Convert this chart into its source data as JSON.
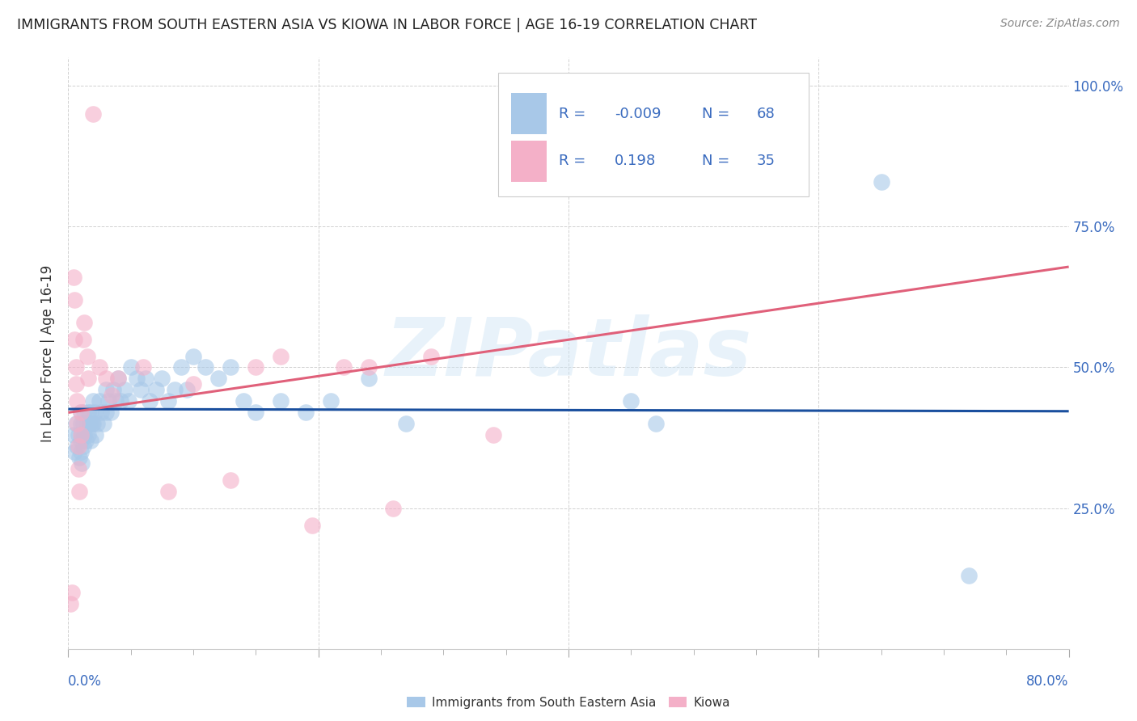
{
  "title": "IMMIGRANTS FROM SOUTH EASTERN ASIA VS KIOWA IN LABOR FORCE | AGE 16-19 CORRELATION CHART",
  "source": "Source: ZipAtlas.com",
  "ylabel": "In Labor Force | Age 16-19",
  "x_min": 0.0,
  "x_max": 0.8,
  "y_min": 0.0,
  "y_max": 1.05,
  "blue_R": "-0.009",
  "blue_N": "68",
  "pink_R": "0.198",
  "pink_N": "35",
  "blue_color": "#a8c8e8",
  "pink_color": "#f4b0c8",
  "blue_line_color": "#1a4f9e",
  "pink_line_color": "#e0607a",
  "text_color_blue": "#3a6bbf",
  "legend_label_blue": "Immigrants from South Eastern Asia",
  "legend_label_pink": "Kiowa",
  "watermark": "ZIPatlas",
  "blue_x": [
    0.004,
    0.005,
    0.006,
    0.007,
    0.008,
    0.009,
    0.01,
    0.01,
    0.01,
    0.01,
    0.011,
    0.011,
    0.012,
    0.012,
    0.013,
    0.013,
    0.014,
    0.015,
    0.016,
    0.016,
    0.017,
    0.018,
    0.018,
    0.019,
    0.02,
    0.02,
    0.021,
    0.022,
    0.023,
    0.025,
    0.026,
    0.028,
    0.03,
    0.03,
    0.032,
    0.034,
    0.036,
    0.038,
    0.04,
    0.042,
    0.045,
    0.048,
    0.05,
    0.055,
    0.058,
    0.062,
    0.065,
    0.07,
    0.075,
    0.08,
    0.085,
    0.09,
    0.095,
    0.1,
    0.11,
    0.12,
    0.13,
    0.14,
    0.15,
    0.17,
    0.19,
    0.21,
    0.24,
    0.27,
    0.45,
    0.47,
    0.65,
    0.72
  ],
  "blue_y": [
    0.38,
    0.35,
    0.4,
    0.36,
    0.38,
    0.34,
    0.42,
    0.4,
    0.37,
    0.35,
    0.38,
    0.33,
    0.4,
    0.36,
    0.42,
    0.38,
    0.37,
    0.4,
    0.42,
    0.38,
    0.4,
    0.42,
    0.37,
    0.4,
    0.44,
    0.4,
    0.42,
    0.38,
    0.4,
    0.44,
    0.42,
    0.4,
    0.46,
    0.42,
    0.44,
    0.42,
    0.46,
    0.44,
    0.48,
    0.44,
    0.46,
    0.44,
    0.5,
    0.48,
    0.46,
    0.48,
    0.44,
    0.46,
    0.48,
    0.44,
    0.46,
    0.5,
    0.46,
    0.52,
    0.5,
    0.48,
    0.5,
    0.44,
    0.42,
    0.44,
    0.42,
    0.44,
    0.48,
    0.4,
    0.44,
    0.4,
    0.83,
    0.13
  ],
  "pink_x": [
    0.002,
    0.003,
    0.004,
    0.005,
    0.005,
    0.006,
    0.006,
    0.007,
    0.007,
    0.008,
    0.008,
    0.009,
    0.01,
    0.01,
    0.012,
    0.013,
    0.015,
    0.016,
    0.02,
    0.025,
    0.03,
    0.035,
    0.04,
    0.06,
    0.08,
    0.1,
    0.13,
    0.15,
    0.17,
    0.195,
    0.22,
    0.24,
    0.26,
    0.29,
    0.34
  ],
  "pink_y": [
    0.08,
    0.1,
    0.66,
    0.62,
    0.55,
    0.5,
    0.47,
    0.44,
    0.4,
    0.36,
    0.32,
    0.28,
    0.42,
    0.38,
    0.55,
    0.58,
    0.52,
    0.48,
    0.95,
    0.5,
    0.48,
    0.45,
    0.48,
    0.5,
    0.28,
    0.47,
    0.3,
    0.5,
    0.52,
    0.22,
    0.5,
    0.5,
    0.25,
    0.52,
    0.38
  ]
}
